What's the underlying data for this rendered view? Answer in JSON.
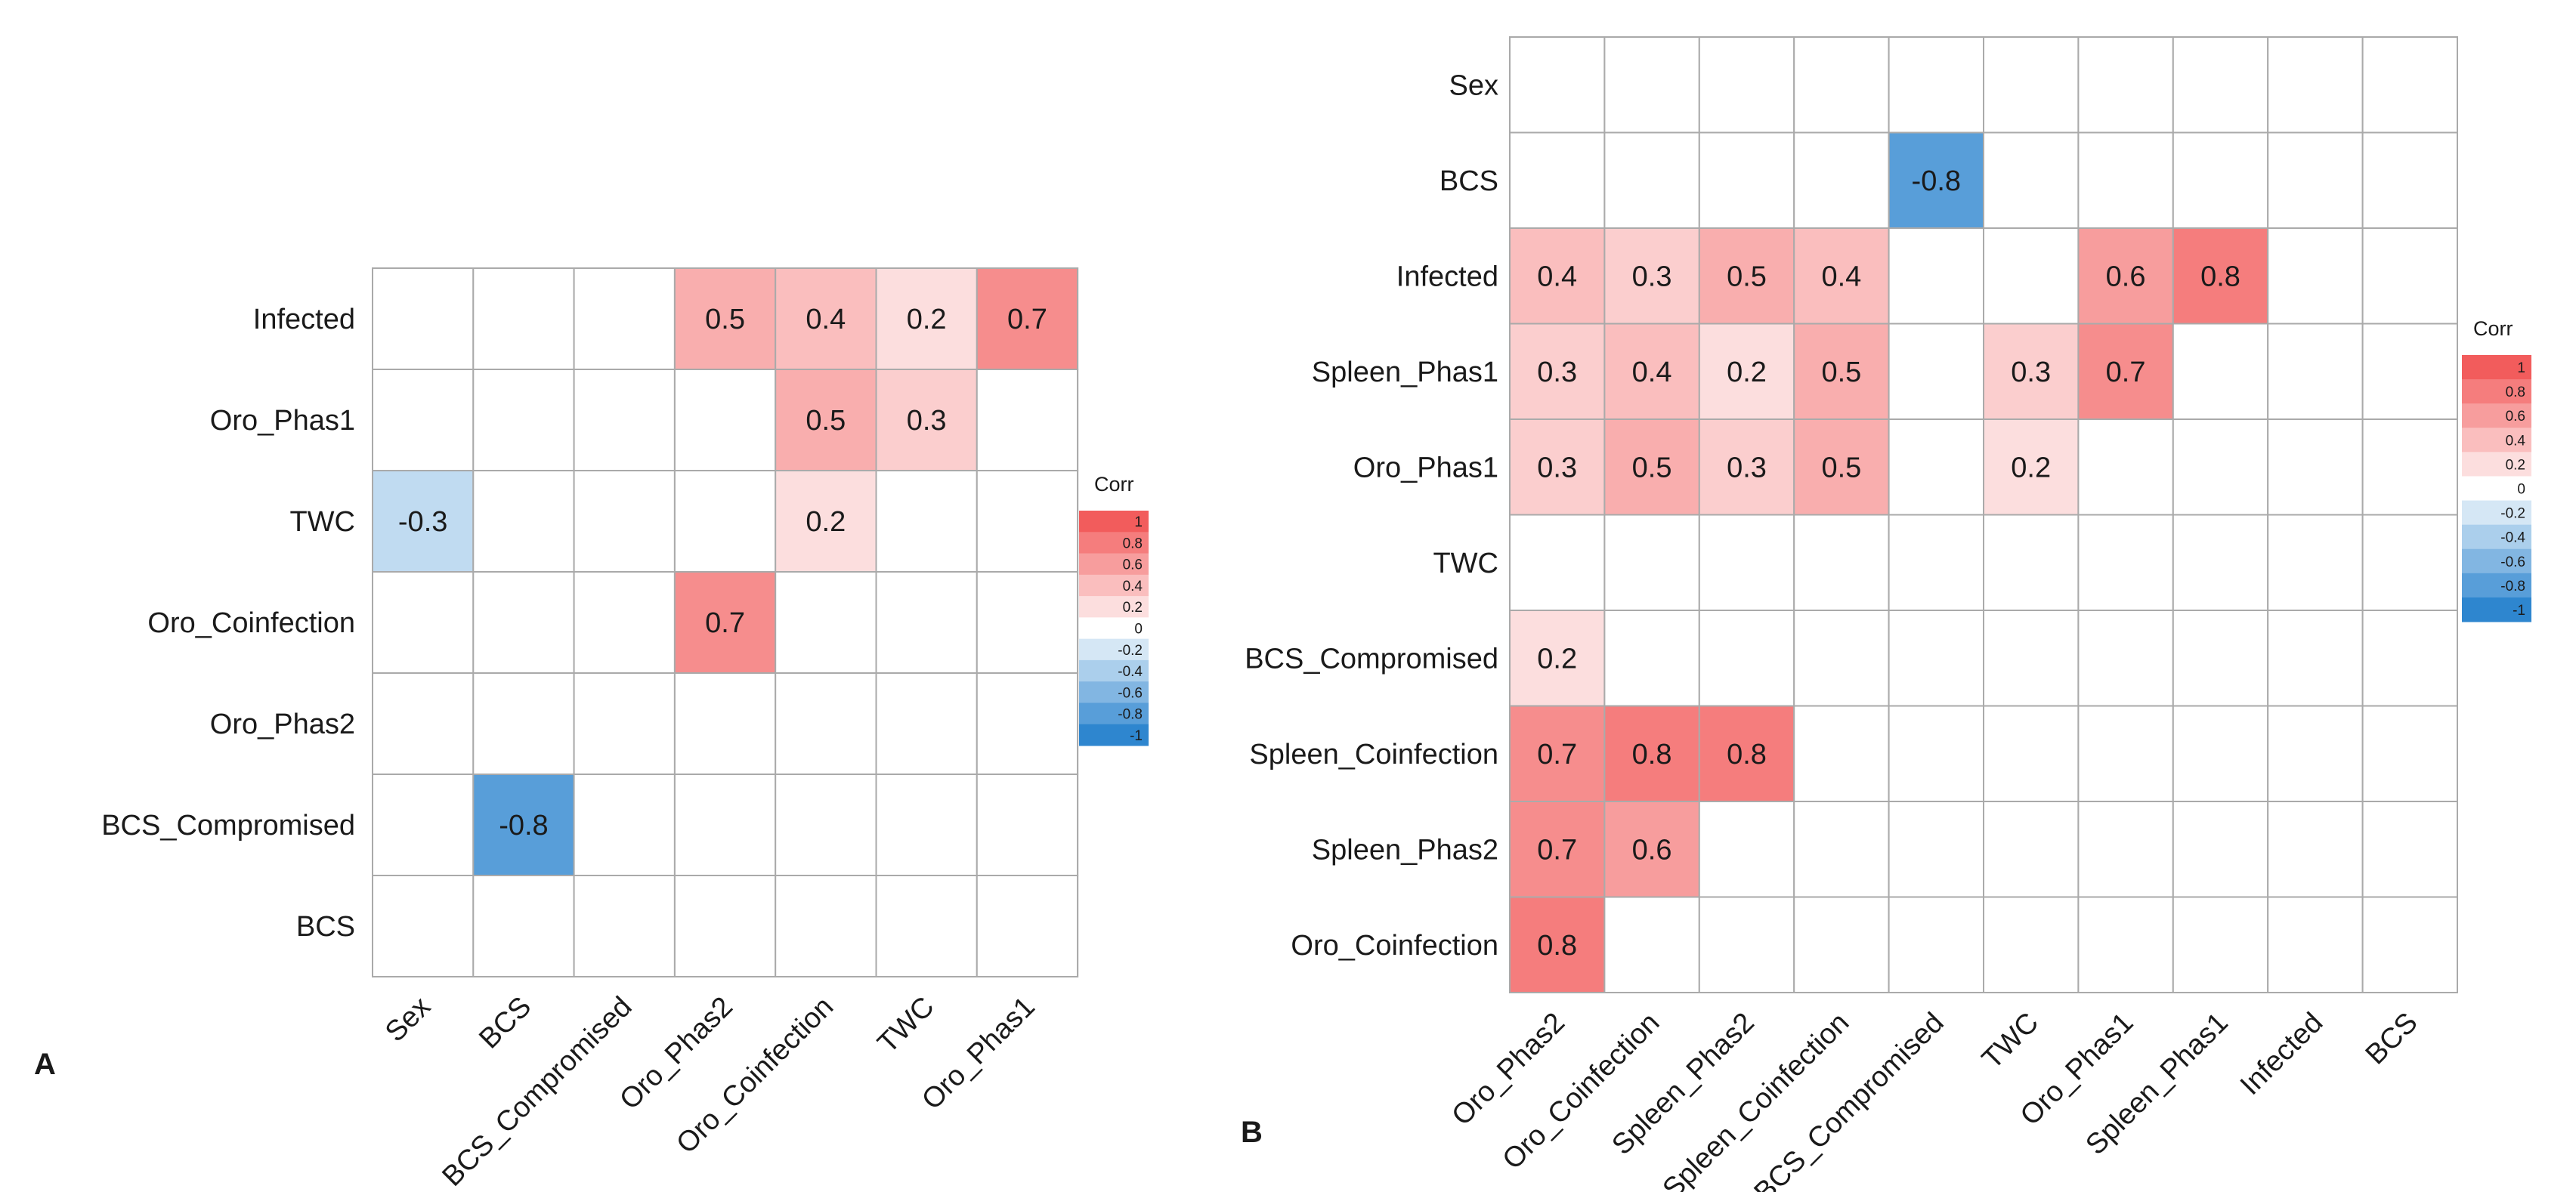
{
  "chart_data": [
    {
      "type": "heatmap",
      "panel_label": "A",
      "rows": [
        "Infected",
        "Oro_Phas1",
        "TWC",
        "Oro_Coinfection",
        "Oro_Phas2",
        "BCS_Compromised",
        "BCS"
      ],
      "columns": [
        "Sex",
        "BCS",
        "BCS_Compromised",
        "Oro_Phas2",
        "Oro_Coinfection",
        "TWC",
        "Oro_Phas1"
      ],
      "values": [
        [
          null,
          null,
          null,
          0.5,
          0.4,
          0.2,
          0.7
        ],
        [
          null,
          null,
          null,
          null,
          0.5,
          0.3,
          null
        ],
        [
          -0.3,
          null,
          null,
          null,
          0.2,
          null,
          null
        ],
        [
          null,
          null,
          null,
          0.7,
          null,
          null,
          null
        ],
        [
          null,
          null,
          null,
          null,
          null,
          null,
          null
        ],
        [
          null,
          -0.8,
          null,
          null,
          null,
          null,
          null
        ],
        [
          null,
          null,
          null,
          null,
          null,
          null,
          null
        ]
      ],
      "legend": {
        "title": "Corr",
        "ticks": [
          "1",
          "0.8",
          "0.6",
          "0.4",
          "0.2",
          "0",
          "-0.2",
          "-0.4",
          "-0.6",
          "-0.8",
          "-1"
        ],
        "range": [
          -1,
          1
        ],
        "placement": "right"
      }
    },
    {
      "type": "heatmap",
      "panel_label": "B",
      "rows": [
        "Sex",
        "BCS",
        "Infected",
        "Spleen_Phas1",
        "Oro_Phas1",
        "TWC",
        "BCS_Compromised",
        "Spleen_Coinfection",
        "Spleen_Phas2",
        "Oro_Coinfection"
      ],
      "columns": [
        "Oro_Phas2",
        "Oro_Coinfection",
        "Spleen_Phas2",
        "Spleen_Coinfection",
        "BCS_Compromised",
        "TWC",
        "Oro_Phas1",
        "Spleen_Phas1",
        "Infected",
        "BCS"
      ],
      "values": [
        [
          null,
          null,
          null,
          null,
          null,
          null,
          null,
          null,
          null,
          null
        ],
        [
          null,
          null,
          null,
          null,
          -0.8,
          null,
          null,
          null,
          null,
          null
        ],
        [
          0.4,
          0.3,
          0.5,
          0.4,
          null,
          null,
          0.6,
          0.8,
          null,
          null
        ],
        [
          0.3,
          0.4,
          0.2,
          0.5,
          null,
          0.3,
          0.7,
          null,
          null,
          null
        ],
        [
          0.3,
          0.5,
          0.3,
          0.5,
          null,
          0.2,
          null,
          null,
          null,
          null
        ],
        [
          null,
          null,
          null,
          null,
          null,
          null,
          null,
          null,
          null,
          null
        ],
        [
          0.2,
          null,
          null,
          null,
          null,
          null,
          null,
          null,
          null,
          null
        ],
        [
          0.7,
          0.8,
          0.8,
          null,
          null,
          null,
          null,
          null,
          null,
          null
        ],
        [
          0.7,
          0.6,
          null,
          null,
          null,
          null,
          null,
          null,
          null,
          null
        ],
        [
          0.8,
          null,
          null,
          null,
          null,
          null,
          null,
          null,
          null,
          null
        ]
      ],
      "legend": {
        "title": "Corr",
        "ticks": [
          "1",
          "0.8",
          "0.6",
          "0.4",
          "0.2",
          "0",
          "-0.2",
          "-0.4",
          "-0.6",
          "-0.8",
          "-1"
        ],
        "range": [
          -1,
          1
        ],
        "placement": "right"
      }
    }
  ],
  "colors": {
    "positive_max": "#f25c5c",
    "neutral": "#ffffff",
    "negative_max": "#2e86cf",
    "grid": "#aaaaaa"
  }
}
